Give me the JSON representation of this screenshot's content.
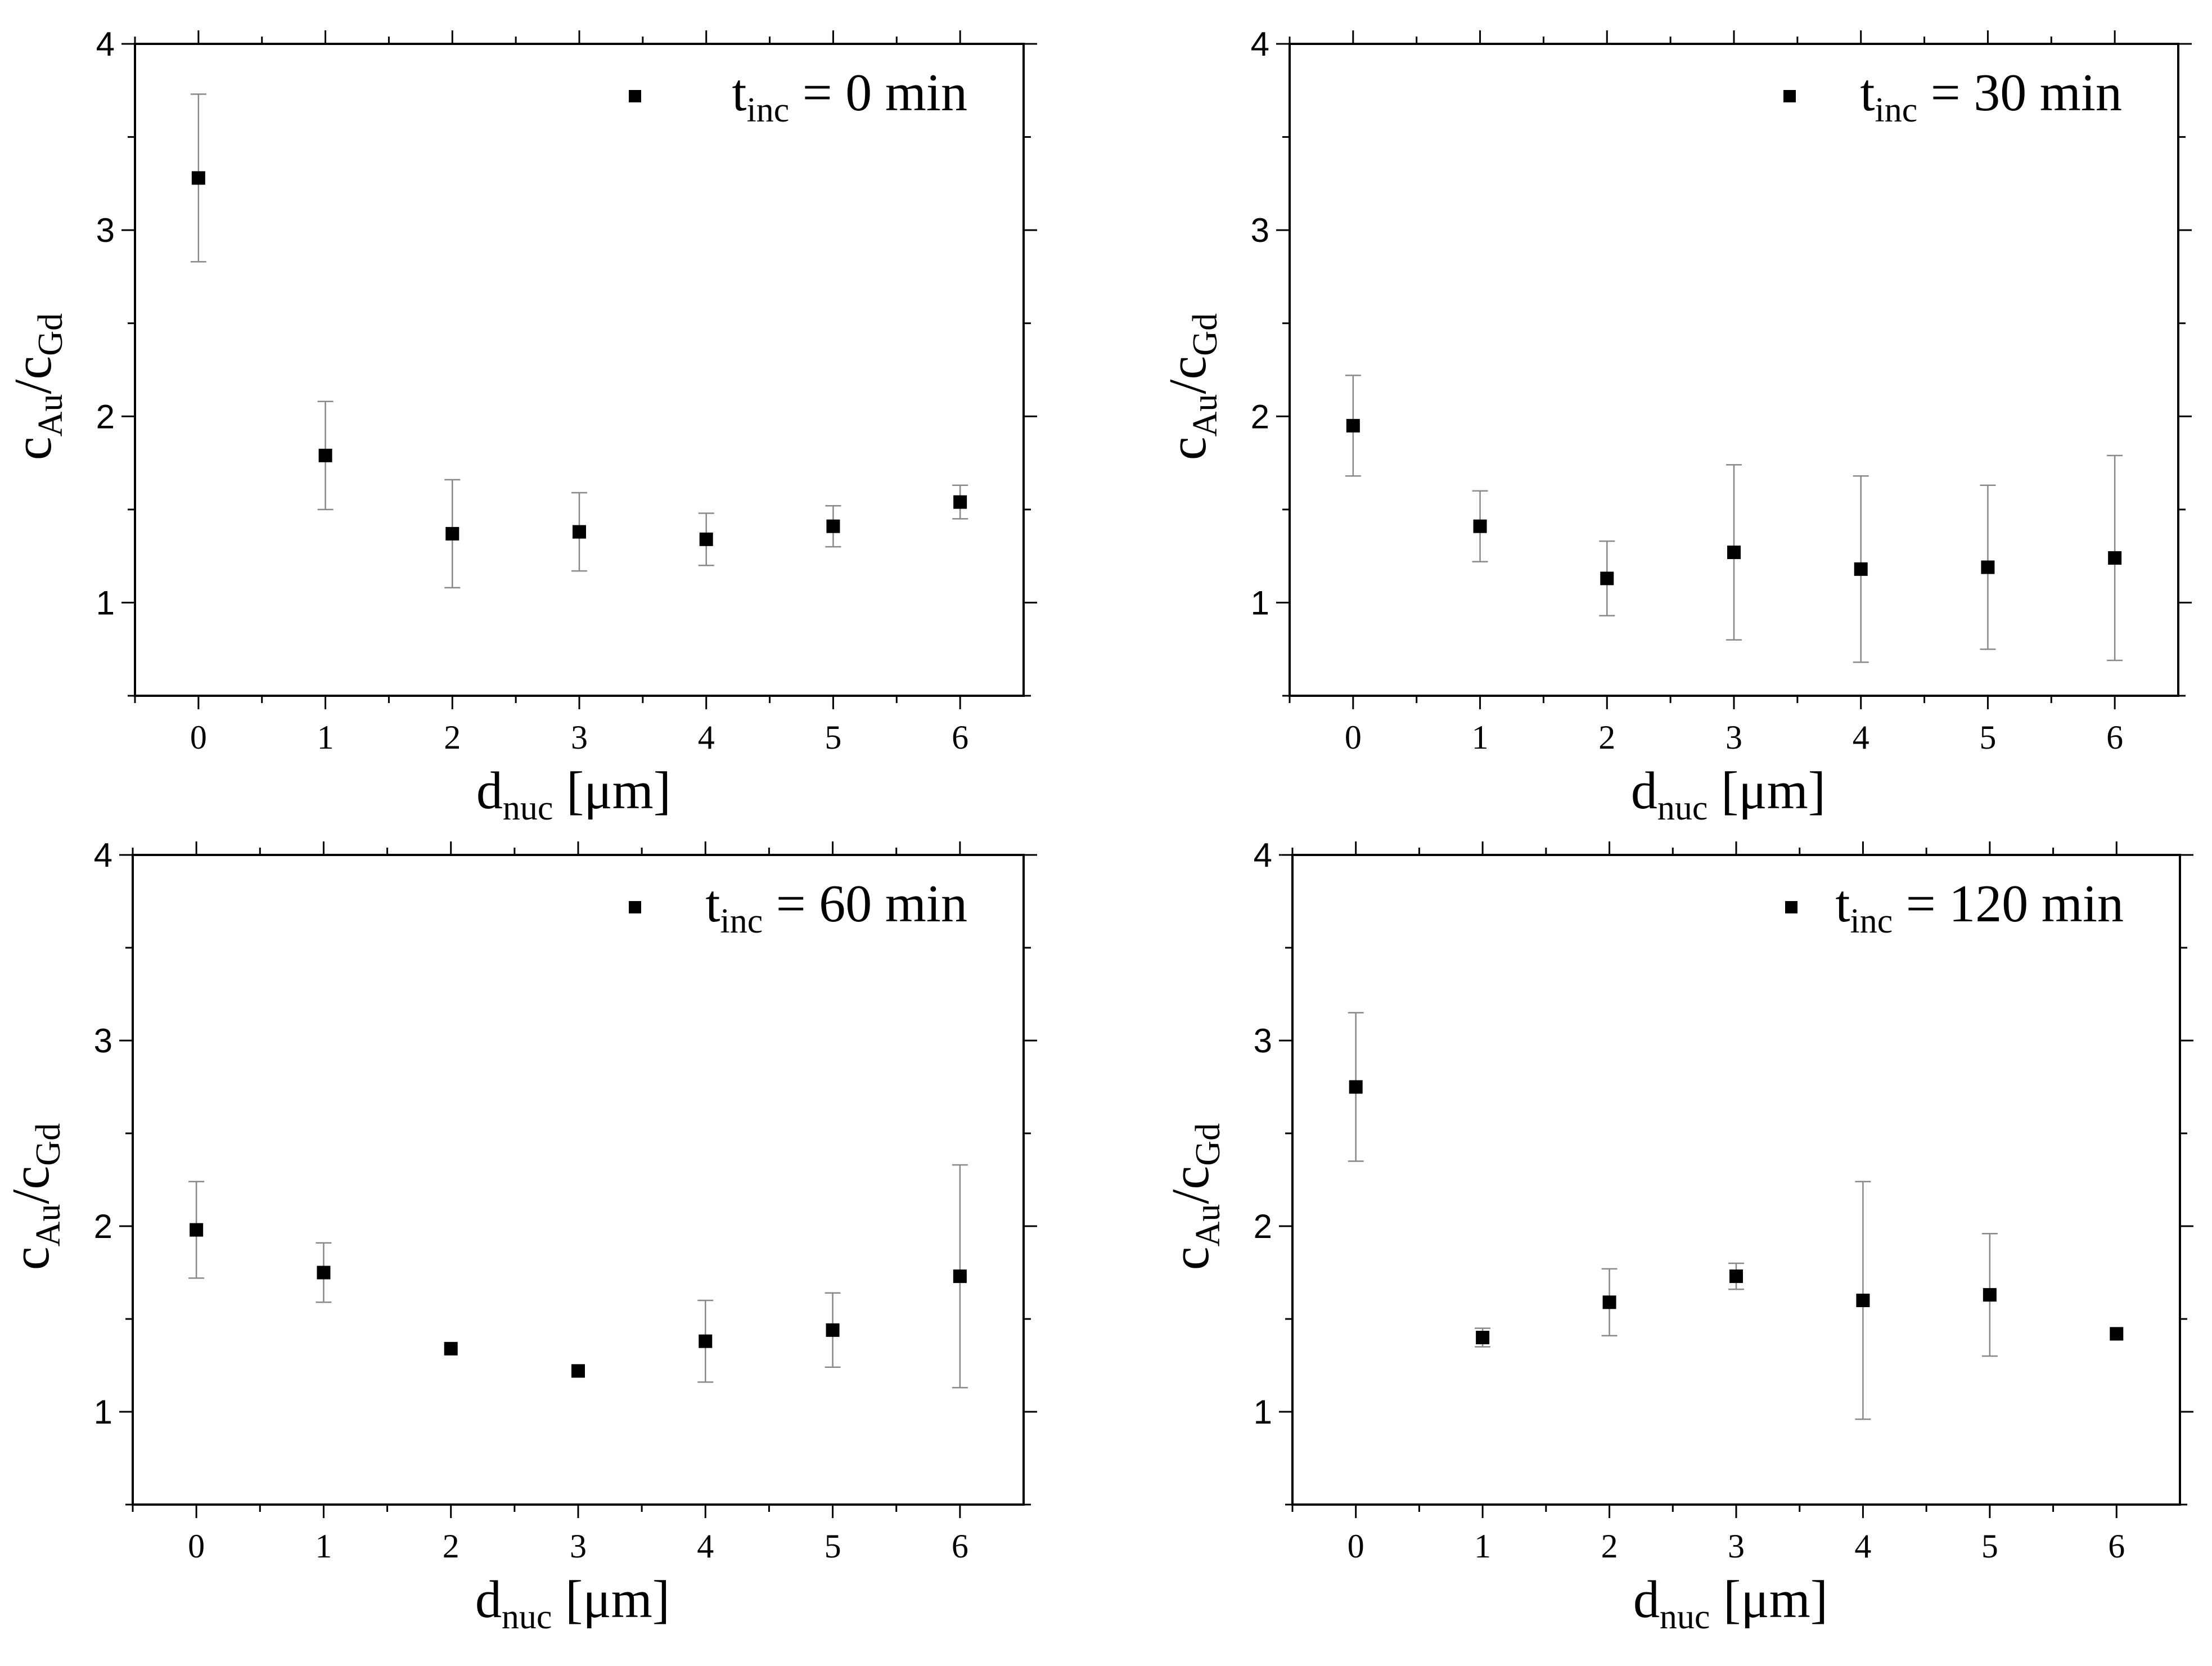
{
  "chart_data": [
    {
      "type": "scatter",
      "xlabel": {
        "main": "d",
        "sub": "nuc",
        "unit": " [μm]"
      },
      "ylabel": {
        "num_main": "c",
        "num_sub": "Au",
        "slash": "/",
        "den_main": "c",
        "den_sub": "Gd"
      },
      "legend": {
        "main": "t",
        "sub": "inc",
        "rest": " = 0 min",
        "position": "top-right"
      },
      "xlim": [
        -0.5,
        6.5
      ],
      "ylim": [
        0.5,
        4
      ],
      "xticks": [
        "0",
        "1",
        "2",
        "3",
        "4",
        "5",
        "6"
      ],
      "yticks": [
        "1",
        "2",
        "3",
        "4"
      ],
      "x": [
        0,
        1,
        2,
        3,
        4,
        5,
        6
      ],
      "y": [
        3.28,
        1.79,
        1.37,
        1.38,
        1.34,
        1.41,
        1.54
      ],
      "yerr": [
        0.45,
        0.29,
        0.29,
        0.21,
        0.14,
        0.11,
        0.09
      ]
    },
    {
      "type": "scatter",
      "xlabel": {
        "main": "d",
        "sub": "nuc",
        "unit": " [μm]"
      },
      "ylabel": {
        "num_main": "c",
        "num_sub": "Au",
        "slash": "/",
        "den_main": "c",
        "den_sub": "Gd"
      },
      "legend": {
        "main": "t",
        "sub": "inc",
        "rest": " = 30 min",
        "position": "top-right"
      },
      "xlim": [
        -0.5,
        6.5
      ],
      "ylim": [
        0.5,
        4
      ],
      "xticks": [
        "0",
        "1",
        "2",
        "3",
        "4",
        "5",
        "6"
      ],
      "yticks": [
        "1",
        "2",
        "3",
        "4"
      ],
      "x": [
        0,
        1,
        2,
        3,
        4,
        5,
        6
      ],
      "y": [
        1.95,
        1.41,
        1.13,
        1.27,
        1.18,
        1.19,
        1.24
      ],
      "yerr": [
        0.27,
        0.19,
        0.2,
        0.47,
        0.5,
        0.44,
        0.55
      ]
    },
    {
      "type": "scatter",
      "xlabel": {
        "main": "d",
        "sub": "nuc",
        "unit": " [μm]"
      },
      "ylabel": {
        "num_main": "c",
        "num_sub": "Au",
        "slash": "/",
        "den_main": "c",
        "den_sub": "Gd"
      },
      "legend": {
        "main": "t",
        "sub": "inc",
        "rest": " = 60 min",
        "position": "top-right"
      },
      "xlim": [
        -0.5,
        6.5
      ],
      "ylim": [
        0.5,
        4
      ],
      "xticks": [
        "0",
        "1",
        "2",
        "3",
        "4",
        "5",
        "6"
      ],
      "yticks": [
        "1",
        "2",
        "3",
        "4"
      ],
      "x": [
        0,
        1,
        2,
        3,
        4,
        5,
        6
      ],
      "y": [
        1.98,
        1.75,
        1.34,
        1.22,
        1.38,
        1.44,
        1.73
      ],
      "yerr": [
        0.26,
        0.16,
        0.0,
        0.0,
        0.22,
        0.2,
        0.6
      ]
    },
    {
      "type": "scatter",
      "xlabel": {
        "main": "d",
        "sub": "nuc",
        "unit": " [μm]"
      },
      "ylabel": {
        "num_main": "c",
        "num_sub": "Au",
        "slash": "/",
        "den_main": "c",
        "den_sub": "Gd"
      },
      "legend": {
        "main": "t",
        "sub": "inc",
        "rest": " = 120 min",
        "position": "top-right"
      },
      "xlim": [
        -0.5,
        6.5
      ],
      "ylim": [
        0.5,
        4
      ],
      "xticks": [
        "0",
        "1",
        "2",
        "3",
        "4",
        "5",
        "6"
      ],
      "yticks": [
        "1",
        "2",
        "3",
        "4"
      ],
      "x": [
        0,
        1,
        2,
        3,
        4,
        5,
        6
      ],
      "y": [
        2.75,
        1.4,
        1.59,
        1.73,
        1.6,
        1.63,
        1.42
      ],
      "yerr": [
        0.4,
        0.05,
        0.18,
        0.07,
        0.64,
        0.33,
        0.0
      ]
    }
  ]
}
